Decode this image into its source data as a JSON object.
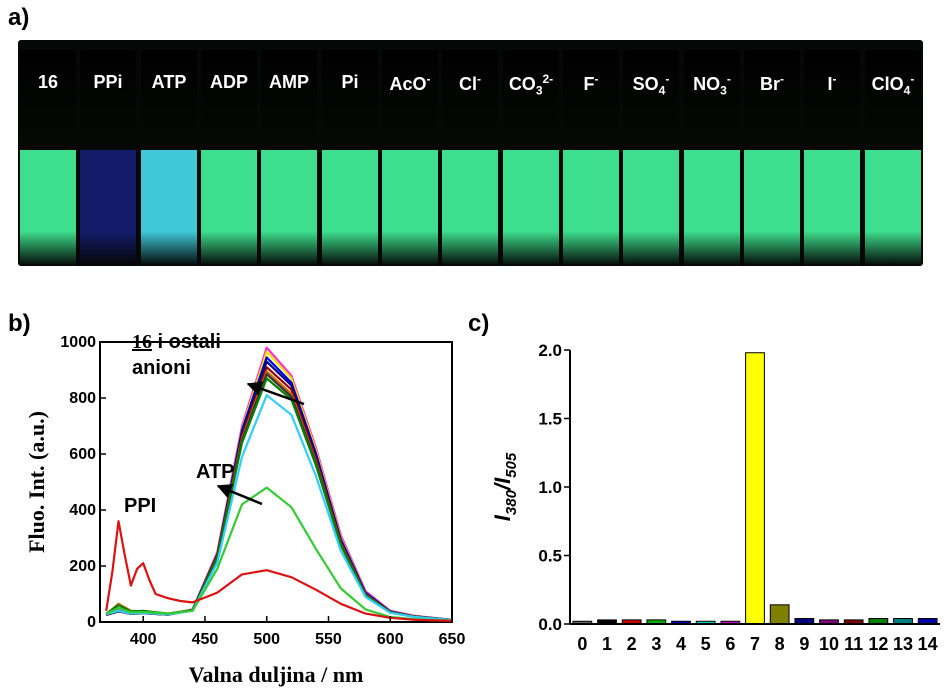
{
  "panels": {
    "a": "a)",
    "b": "b)",
    "c": "c)"
  },
  "photo": {
    "vials": [
      {
        "main": "16",
        "sub": "",
        "sup": "",
        "color": "#3dde8d"
      },
      {
        "main": "PPi",
        "sub": "",
        "sup": "",
        "color": "#141c6a"
      },
      {
        "main": "ATP",
        "sub": "",
        "sup": "",
        "color": "#3fc9d8"
      },
      {
        "main": "ADP",
        "sub": "",
        "sup": "",
        "color": "#3dde8d"
      },
      {
        "main": "AMP",
        "sub": "",
        "sup": "",
        "color": "#3dde8d"
      },
      {
        "main": "Pi",
        "sub": "",
        "sup": "",
        "color": "#3dde8d"
      },
      {
        "main": "AcO",
        "sub": "",
        "sup": "-",
        "color": "#3dde8d"
      },
      {
        "main": "Cl",
        "sub": "",
        "sup": "-",
        "color": "#3dde8d"
      },
      {
        "main": "CO",
        "sub": "3",
        "sup": "2-",
        "color": "#3dde8d"
      },
      {
        "main": "F",
        "sub": "",
        "sup": "-",
        "color": "#3dde8d"
      },
      {
        "main": "SO",
        "sub": "4",
        "sup": "-",
        "color": "#3dde8d"
      },
      {
        "main": "NO",
        "sub": "3",
        "sup": "-",
        "color": "#3dde8d"
      },
      {
        "main": "Br",
        "sub": "",
        "sup": "-",
        "color": "#3dde8d"
      },
      {
        "main": "I",
        "sub": "",
        "sup": "-",
        "color": "#3dde8d"
      },
      {
        "main": "ClO",
        "sub": "4",
        "sup": "-",
        "color": "#3dde8d"
      }
    ]
  },
  "chart_data": [
    {
      "type": "line",
      "xlabel": "Valna duljina / nm",
      "ylabel": "Fluo. Int. (a.u.)",
      "xlim": [
        365,
        650
      ],
      "ylim": [
        0,
        1000
      ],
      "xticks": [
        400,
        450,
        500,
        550,
        600,
        650
      ],
      "yticks": [
        0,
        200,
        400,
        600,
        800,
        1000
      ],
      "annotations": {
        "others_num": "16",
        "others_text1": " i ostali",
        "others_text2": "anioni",
        "atp": "ATP",
        "ppi": "PPI"
      },
      "series": [
        {
          "color": "#ff33cc",
          "x": [
            370,
            380,
            390,
            400,
            420,
            440,
            460,
            480,
            500,
            520,
            540,
            560,
            580,
            600,
            620,
            650
          ],
          "y": [
            28,
            42,
            32,
            34,
            28,
            45,
            250,
            700,
            980,
            880,
            620,
            310,
            110,
            40,
            22,
            8
          ]
        },
        {
          "color": "#e6e600",
          "x": [
            370,
            380,
            390,
            400,
            420,
            440,
            460,
            480,
            500,
            520,
            540,
            560,
            580,
            600,
            620,
            650
          ],
          "y": [
            27,
            40,
            31,
            33,
            27,
            44,
            245,
            690,
            965,
            870,
            610,
            300,
            105,
            38,
            21,
            8
          ]
        },
        {
          "color": "#0000cc",
          "x": [
            370,
            380,
            390,
            400,
            420,
            440,
            460,
            480,
            500,
            520,
            540,
            560,
            580,
            600,
            620,
            650
          ],
          "y": [
            26,
            40,
            30,
            32,
            27,
            44,
            242,
            685,
            945,
            855,
            600,
            295,
            105,
            38,
            20,
            8
          ]
        },
        {
          "color": "#000099",
          "x": [
            370,
            380,
            390,
            400,
            420,
            440,
            460,
            480,
            500,
            520,
            540,
            560,
            580,
            600,
            620,
            650
          ],
          "y": [
            26,
            39,
            30,
            32,
            26,
            43,
            240,
            675,
            930,
            845,
            590,
            290,
            100,
            37,
            20,
            8
          ]
        },
        {
          "color": "#990000",
          "x": [
            370,
            380,
            390,
            400,
            420,
            440,
            460,
            480,
            500,
            520,
            540,
            560,
            580,
            600,
            620,
            650
          ],
          "y": [
            25,
            38,
            29,
            31,
            26,
            43,
            236,
            665,
            910,
            830,
            580,
            285,
            100,
            36,
            19,
            7
          ]
        },
        {
          "color": "#cc6600",
          "x": [
            370,
            380,
            390,
            400,
            420,
            440,
            460,
            480,
            500,
            520,
            540,
            560,
            580,
            600,
            620,
            650
          ],
          "y": [
            28,
            65,
            40,
            38,
            30,
            43,
            232,
            655,
            895,
            815,
            570,
            280,
            98,
            36,
            19,
            7
          ]
        },
        {
          "color": "#333333",
          "x": [
            370,
            380,
            390,
            400,
            420,
            440,
            460,
            480,
            500,
            520,
            540,
            560,
            580,
            600,
            620,
            650
          ],
          "y": [
            25,
            38,
            29,
            31,
            26,
            42,
            230,
            648,
            885,
            805,
            565,
            278,
            96,
            35,
            19,
            7
          ]
        },
        {
          "color": "#008000",
          "x": [
            370,
            380,
            390,
            400,
            420,
            440,
            460,
            480,
            500,
            520,
            540,
            560,
            580,
            600,
            620,
            650
          ],
          "y": [
            30,
            60,
            38,
            40,
            30,
            42,
            228,
            640,
            870,
            795,
            558,
            275,
            95,
            35,
            18,
            7
          ]
        },
        {
          "color": "#33ccff",
          "x": [
            370,
            380,
            390,
            400,
            420,
            440,
            460,
            480,
            500,
            520,
            540,
            560,
            580,
            600,
            620,
            650
          ],
          "y": [
            28,
            40,
            30,
            32,
            27,
            40,
            212,
            590,
            810,
            740,
            520,
            255,
            90,
            33,
            18,
            7
          ]
        },
        {
          "color": "#33cc33",
          "x": [
            370,
            380,
            390,
            400,
            420,
            440,
            460,
            480,
            500,
            520,
            540,
            560,
            580,
            600,
            620,
            650
          ],
          "y": [
            30,
            50,
            35,
            36,
            30,
            40,
            190,
            420,
            480,
            410,
            260,
            120,
            45,
            18,
            10,
            5
          ]
        },
        {
          "color": "#dd1111",
          "x": [
            370,
            375,
            380,
            385,
            390,
            395,
            400,
            405,
            410,
            420,
            430,
            440,
            460,
            480,
            500,
            520,
            540,
            560,
            580,
            600,
            620,
            650
          ],
          "y": [
            40,
            180,
            360,
            240,
            130,
            190,
            210,
            150,
            100,
            85,
            75,
            70,
            105,
            170,
            185,
            160,
            115,
            65,
            30,
            15,
            8,
            4
          ]
        }
      ]
    },
    {
      "type": "bar",
      "ylabel": "I380/I505",
      "ylabel_main": "I",
      "ylabel_sub1": "380",
      "ylabel_mid": "/I",
      "ylabel_sub2": "505",
      "categories": [
        "0",
        "1",
        "2",
        "3",
        "4",
        "5",
        "6",
        "7",
        "8",
        "9",
        "10",
        "11",
        "12",
        "13",
        "14"
      ],
      "values": [
        0.02,
        0.03,
        0.03,
        0.03,
        0.02,
        0.02,
        0.02,
        1.98,
        0.14,
        0.04,
        0.03,
        0.03,
        0.04,
        0.04,
        0.04
      ],
      "colors": [
        "#666666",
        "#000000",
        "#cc0000",
        "#00aa00",
        "#0000cc",
        "#00cccc",
        "#cc00cc",
        "#ffff00",
        "#808000",
        "#000080",
        "#800080",
        "#800000",
        "#008000",
        "#008080",
        "#0000aa"
      ],
      "ylim": [
        0,
        2.0
      ],
      "yticks": [
        "0.0",
        "0.5",
        "1.0",
        "1.5",
        "2.0"
      ]
    }
  ]
}
